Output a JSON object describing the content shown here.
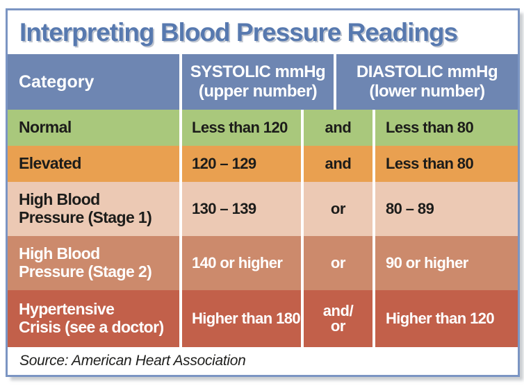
{
  "title": "Interpreting Blood Pressure Readings",
  "source": "Source: American Heart Association",
  "colors": {
    "border_blue": "#7b95c3",
    "header_blue": "#6e86b2",
    "title_blue": "#5779af",
    "row_normal_green": "#a9c87c",
    "row_elevated_orange": "#e9a050",
    "row_stage1_peach": "#ecc9b4",
    "row_stage2_salmon": "#cc8a6c",
    "row_crisis_red": "#c2604a",
    "dark_text": "#1c1c1a",
    "light_text": "#ffffff"
  },
  "table": {
    "header": {
      "category": "Category",
      "systolic_line1": "SYSTOLIC mmHg",
      "systolic_line2": "(upper number)",
      "diastolic_line1": "DIASTOLIC mmHg",
      "diastolic_line2": "(lower number)"
    },
    "rows": [
      {
        "category_lines": [
          "Normal"
        ],
        "systolic": "Less than 120",
        "connector_lines": [
          "and"
        ],
        "diastolic": "Less than 80"
      },
      {
        "category_lines": [
          "Elevated"
        ],
        "systolic": "120 – 129",
        "connector_lines": [
          "and"
        ],
        "diastolic": "Less than 80"
      },
      {
        "category_lines": [
          "High Blood",
          "Pressure (Stage 1)"
        ],
        "systolic": "130 – 139",
        "connector_lines": [
          "or"
        ],
        "diastolic": "80 – 89"
      },
      {
        "category_lines": [
          "High Blood",
          "Pressure (Stage 2)"
        ],
        "systolic": "140 or higher",
        "connector_lines": [
          "or"
        ],
        "diastolic": "90 or higher"
      },
      {
        "category_lines": [
          "Hypertensive",
          "Crisis (see a doctor)"
        ],
        "systolic": "Higher than 180",
        "connector_lines": [
          "and/",
          "or"
        ],
        "diastolic": "Higher than 120"
      }
    ]
  },
  "chart_data": {
    "type": "table",
    "title": "Interpreting Blood Pressure Readings",
    "columns": [
      "Category",
      "SYSTOLIC mmHg (upper number)",
      "and/or",
      "DIASTOLIC mmHg (lower number)"
    ],
    "rows": [
      [
        "Normal",
        "Less than 120",
        "and",
        "Less than 80"
      ],
      [
        "Elevated",
        "120 – 129",
        "and",
        "Less than 80"
      ],
      [
        "High Blood Pressure (Stage 1)",
        "130 – 139",
        "or",
        "80 – 89"
      ],
      [
        "High Blood Pressure (Stage 2)",
        "140 or higher",
        "or",
        "90 or higher"
      ],
      [
        "Hypertensive Crisis (see a doctor)",
        "Higher than 180",
        "and/or",
        "Higher than 120"
      ]
    ],
    "source": "Source: American Heart Association"
  }
}
